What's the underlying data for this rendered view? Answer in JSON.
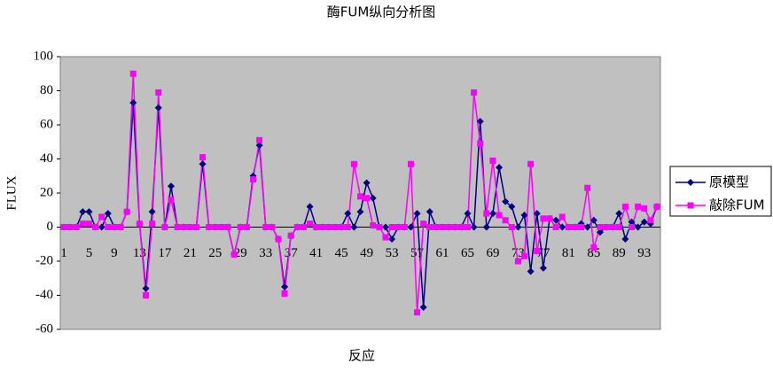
{
  "chart_data": {
    "type": "line",
    "title": "酶FUM纵向分析图",
    "x_label": "反应",
    "y_label": "FLUX",
    "categories": [
      1,
      null,
      null,
      null,
      5,
      null,
      null,
      null,
      9,
      null,
      null,
      null,
      13,
      null,
      null,
      null,
      17,
      null,
      null,
      null,
      21,
      null,
      null,
      null,
      25,
      null,
      null,
      null,
      29,
      null,
      null,
      null,
      33,
      null,
      null,
      null,
      37,
      null,
      null,
      null,
      41,
      null,
      null,
      null,
      45,
      null,
      null,
      null,
      49,
      null,
      null,
      null,
      53,
      null,
      null,
      null,
      57,
      null,
      null,
      null,
      61,
      null,
      null,
      null,
      65,
      null,
      null,
      null,
      69,
      null,
      null,
      null,
      73,
      null,
      null,
      null,
      77,
      null,
      null,
      null,
      81,
      null,
      null,
      null,
      85,
      null,
      null,
      null,
      89,
      null,
      null,
      null,
      93,
      null,
      null
    ],
    "series": [
      {
        "name": "原模型",
        "color": "#000080",
        "marker": "diamond",
        "values": [
          0,
          0,
          0,
          9,
          9,
          0,
          0,
          8,
          0,
          0,
          9,
          73,
          2,
          -36,
          9,
          70,
          0,
          24,
          0,
          0,
          0,
          0,
          37,
          0,
          0,
          0,
          0,
          -16,
          0,
          0,
          30,
          48,
          0,
          0,
          -7,
          -35,
          -5,
          0,
          0,
          12,
          0,
          0,
          0,
          0,
          0,
          8,
          0,
          9,
          26,
          17,
          0,
          0,
          -7,
          0,
          0,
          0,
          8,
          -47,
          9,
          0,
          0,
          0,
          0,
          0,
          8,
          0,
          62,
          0,
          8,
          35,
          15,
          12,
          0,
          7,
          -26,
          8,
          -24,
          5,
          4,
          0,
          0,
          0,
          2,
          0,
          4,
          -3,
          0,
          0,
          8,
          -7,
          3,
          0,
          3,
          2,
          12
        ]
      },
      {
        "name": "敲除FUM",
        "color": "#ff00ff",
        "marker": "square",
        "values": [
          0,
          0,
          0,
          2,
          2,
          0,
          6,
          0,
          0,
          0,
          9,
          90,
          2,
          -40,
          2,
          79,
          0,
          16,
          0,
          0,
          0,
          0,
          41,
          0,
          0,
          0,
          0,
          -16,
          0,
          0,
          28,
          51,
          0,
          0,
          -7,
          -39,
          -5,
          0,
          0,
          2,
          0,
          0,
          0,
          0,
          0,
          0,
          37,
          18,
          17,
          1,
          0,
          -6,
          0,
          0,
          0,
          37,
          -50,
          2,
          0,
          0,
          0,
          0,
          0,
          0,
          0,
          79,
          49,
          8,
          39,
          7,
          4,
          0,
          -20,
          -17,
          37,
          -14,
          5,
          5,
          0,
          6,
          0,
          0,
          0,
          23,
          -12,
          0,
          0,
          0,
          0,
          12,
          0,
          12,
          11,
          4,
          12
        ]
      }
    ],
    "ylim": [
      -60,
      100
    ],
    "yticks": [
      -60,
      -40,
      -20,
      0,
      20,
      40,
      60,
      80,
      100
    ],
    "grid": false,
    "legend": "right"
  }
}
